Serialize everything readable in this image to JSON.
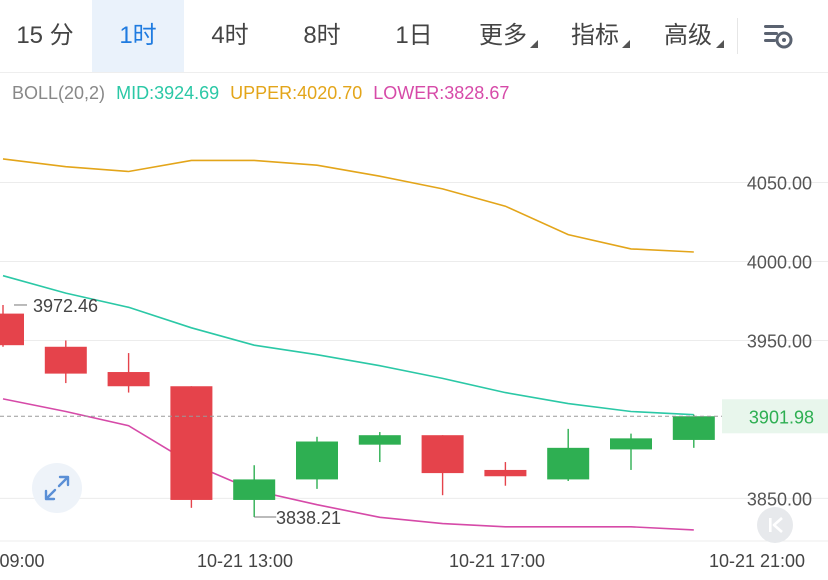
{
  "toolbar": {
    "timeframes": [
      {
        "label": "15 分",
        "active": false
      },
      {
        "label": "1时",
        "active": true
      },
      {
        "label": "4时",
        "active": false
      },
      {
        "label": "8时",
        "active": false
      },
      {
        "label": "1日",
        "active": false
      }
    ],
    "more_label": "更多",
    "indicators_label": "指标",
    "advanced_label": "高级",
    "settings_icon": "chart-settings-icon"
  },
  "legend": {
    "name": "BOLL(20,2)",
    "mid": "MID:3924.69",
    "upper": "UPPER:4020.70",
    "lower": "LOWER:3828.67"
  },
  "colors": {
    "up": "#2eaf52",
    "down": "#e5434b",
    "mid": "#2bc8a6",
    "upper": "#e3a51a",
    "lower": "#d64aa8",
    "last_price_bg": "#e8f6ec",
    "last_price_text": "#2eaf52"
  },
  "icons": {
    "expand": "expand-arrows-icon",
    "jump_to_latest": "jump-to-start-icon"
  },
  "chart_data": {
    "type": "candlestick",
    "indicator": "BOLL(20,2)",
    "ylim": [
      3823,
      4120
    ],
    "y_ticks": [
      "4050.00",
      "4000.00",
      "3950.00",
      "3850.00"
    ],
    "x_ticks": [
      "09:00",
      "10-21 13:00",
      "10-21 17:00",
      "10-21 21:00"
    ],
    "last_price": "3901.98",
    "annotations": {
      "high": "3972.46",
      "low": "3838.21"
    },
    "candles": [
      {
        "o": 3967,
        "h": 3972.46,
        "l": 3946,
        "c": 3947
      },
      {
        "o": 3946,
        "h": 3950,
        "l": 3923,
        "c": 3929
      },
      {
        "o": 3930,
        "h": 3942,
        "l": 3917,
        "c": 3921
      },
      {
        "o": 3921,
        "h": 3921,
        "l": 3844,
        "c": 3849
      },
      {
        "o": 3849,
        "h": 3871,
        "l": 3838.21,
        "c": 3862
      },
      {
        "o": 3862,
        "h": 3889,
        "l": 3856,
        "c": 3886
      },
      {
        "o": 3884,
        "h": 3892,
        "l": 3873,
        "c": 3890
      },
      {
        "o": 3890,
        "h": 3890,
        "l": 3852,
        "c": 3866
      },
      {
        "o": 3868,
        "h": 3873,
        "l": 3858,
        "c": 3864
      },
      {
        "o": 3862,
        "h": 3894,
        "l": 3861,
        "c": 3882
      },
      {
        "o": 3881,
        "h": 3891,
        "l": 3868,
        "c": 3888
      },
      {
        "o": 3887,
        "h": 3903,
        "l": 3882,
        "c": 3902
      }
    ],
    "upper_band": [
      4065,
      4060,
      4057,
      4064,
      4064,
      4061,
      4054,
      4046,
      4035,
      4017,
      4008,
      4006
    ],
    "mid_band": [
      3991,
      3980,
      3971,
      3958,
      3947,
      3941,
      3934,
      3926,
      3917,
      3910,
      3905,
      3903
    ],
    "lower_band": [
      3913,
      3905,
      3896,
      3872,
      3855,
      3846,
      3838,
      3834,
      3832,
      3832,
      3832,
      3830
    ]
  }
}
